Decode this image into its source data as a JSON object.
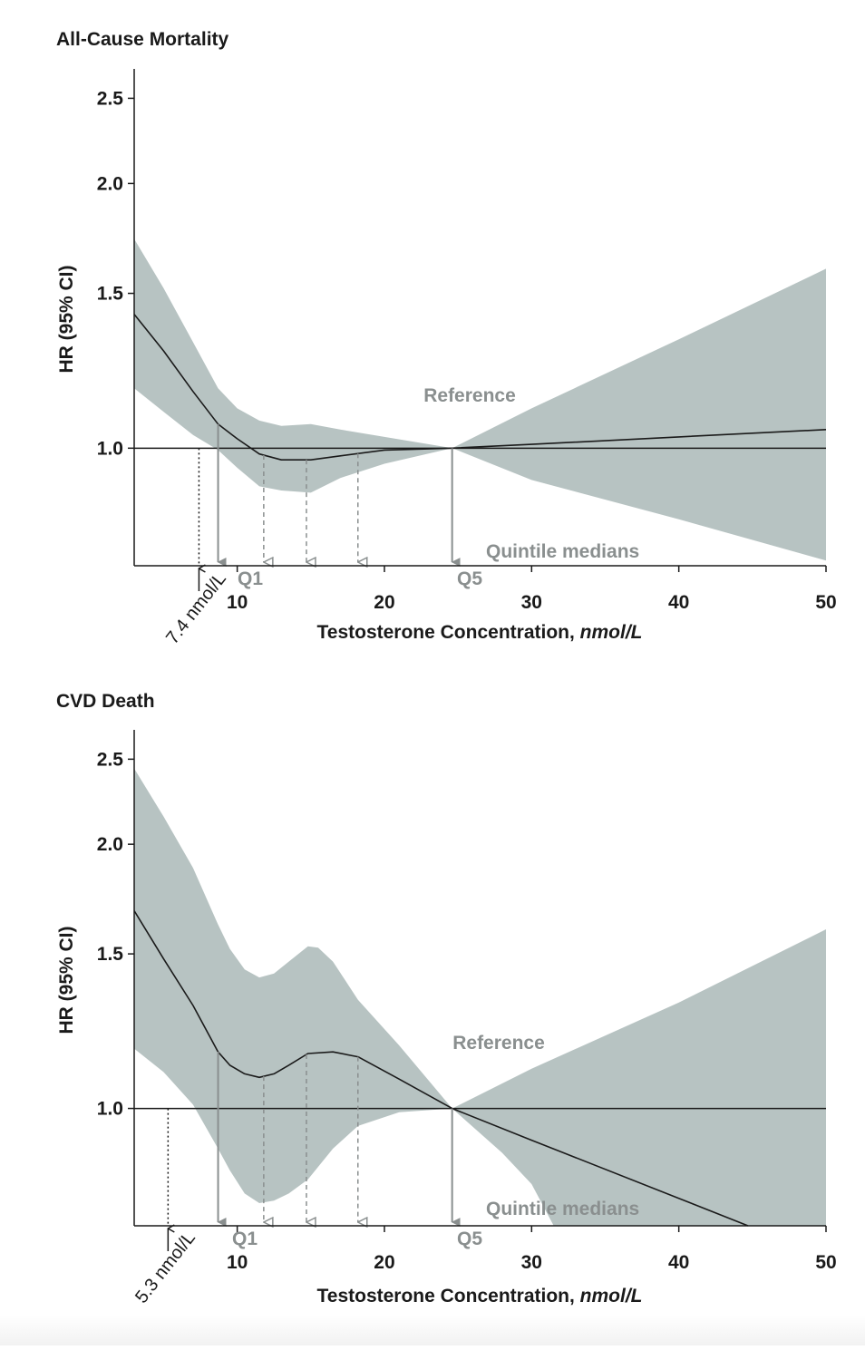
{
  "colors": {
    "ci_band": "#b7c3c2",
    "line": "#1a1a1a",
    "arrow_grey": "#8a8f8f"
  },
  "chart_data": [
    {
      "type": "line",
      "title": "All-Cause Mortality",
      "xlabel_plain": "Testosterone Concentration, ",
      "xlabel_unit": "nmol/L",
      "ylabel": "HR (95% CI)",
      "xlim": [
        3,
        50
      ],
      "ylim": [
        0.735,
        2.7
      ],
      "yscale": "log",
      "x_ticks": [
        10,
        20,
        30,
        40,
        50
      ],
      "x_tick_labels": [
        "10",
        "20",
        "30",
        "40",
        "50"
      ],
      "y_ticks": [
        1.0,
        1.5,
        2.0,
        2.5
      ],
      "y_tick_labels": [
        "1.0",
        "1.5",
        "2.0",
        "2.5"
      ],
      "reference_hr": 1.0,
      "reference_label": "Reference",
      "quintile_label": "Quintile medians",
      "quintile_medians": [
        {
          "x": 8.7,
          "label": "Q1",
          "solid": true
        },
        {
          "x": 11.8,
          "label": "",
          "solid": false
        },
        {
          "x": 14.7,
          "label": "",
          "solid": false
        },
        {
          "x": 18.2,
          "label": "",
          "solid": false
        },
        {
          "x": 24.6,
          "label": "Q5",
          "solid": true
        }
      ],
      "threshold": {
        "x": 7.4,
        "label": "7.4 nmol/L"
      },
      "series": [
        {
          "name": "HR",
          "x": [
            3,
            5,
            7,
            8.7,
            10,
            11.5,
            13,
            15,
            17,
            20,
            24.6,
            30,
            40,
            50
          ],
          "values": [
            1.42,
            1.29,
            1.16,
            1.065,
            1.025,
            0.985,
            0.97,
            0.97,
            0.98,
            0.995,
            1.0,
            1.01,
            1.03,
            1.05
          ]
        },
        {
          "name": "Upper 95% CI",
          "x": [
            3,
            5,
            7,
            8.7,
            10,
            11.5,
            13,
            15,
            17,
            20,
            24.6,
            30,
            40,
            50
          ],
          "values": [
            1.73,
            1.52,
            1.32,
            1.17,
            1.11,
            1.075,
            1.06,
            1.065,
            1.05,
            1.03,
            1.0,
            1.11,
            1.33,
            1.6
          ]
        },
        {
          "name": "Lower 95% CI",
          "x": [
            3,
            5,
            7,
            8.7,
            10,
            11.5,
            13,
            15,
            17,
            20,
            24.6,
            30,
            40,
            50
          ],
          "values": [
            1.17,
            1.1,
            1.035,
            0.995,
            0.95,
            0.905,
            0.895,
            0.89,
            0.925,
            0.96,
            1.0,
            0.92,
            0.83,
            0.745
          ]
        }
      ]
    },
    {
      "type": "line",
      "title": "CVD Death",
      "xlabel_plain": "Testosterone Concentration, ",
      "xlabel_unit": "nmol/L",
      "ylabel": "HR (95% CI)",
      "xlim": [
        3,
        50
      ],
      "ylim": [
        0.735,
        2.7
      ],
      "yscale": "log",
      "x_ticks": [
        10,
        20,
        30,
        40,
        50
      ],
      "x_tick_labels": [
        "10",
        "20",
        "30",
        "40",
        "50"
      ],
      "y_ticks": [
        1.0,
        1.5,
        2.0,
        2.5
      ],
      "y_tick_labels": [
        "1.0",
        "1.5",
        "2.0",
        "2.5"
      ],
      "reference_hr": 1.0,
      "reference_label": "Reference",
      "quintile_label": "Quintile medians",
      "quintile_medians": [
        {
          "x": 8.7,
          "label": "Q1",
          "solid": true
        },
        {
          "x": 11.8,
          "label": "",
          "solid": false
        },
        {
          "x": 14.7,
          "label": "",
          "solid": false
        },
        {
          "x": 18.2,
          "label": "",
          "solid": false
        },
        {
          "x": 24.6,
          "label": "Q5",
          "solid": true
        }
      ],
      "threshold": {
        "x": 5.3,
        "label": "5.3 nmol/L"
      },
      "series": [
        {
          "name": "HR",
          "x": [
            3,
            5,
            7,
            8.7,
            9.5,
            10.5,
            11.5,
            12.5,
            13.5,
            14.8,
            16.5,
            18.2,
            21,
            24.6,
            30,
            40,
            44.7
          ],
          "values": [
            1.68,
            1.48,
            1.31,
            1.16,
            1.12,
            1.095,
            1.085,
            1.095,
            1.12,
            1.155,
            1.16,
            1.145,
            1.08,
            1.0,
            0.92,
            0.79,
            0.735
          ]
        },
        {
          "name": "Upper 95% CI",
          "x": [
            3,
            5,
            7,
            8.7,
            9.5,
            10.5,
            11.5,
            12.5,
            13.5,
            14.8,
            15.5,
            16.5,
            18.2,
            21,
            24.6,
            30,
            40,
            50
          ],
          "values": [
            2.44,
            2.15,
            1.88,
            1.62,
            1.52,
            1.44,
            1.41,
            1.425,
            1.47,
            1.53,
            1.525,
            1.47,
            1.33,
            1.18,
            1.0,
            1.11,
            1.32,
            1.6
          ]
        },
        {
          "name": "Lower 95% CI",
          "x": [
            3,
            5,
            7,
            8.7,
            9.5,
            10.5,
            11.5,
            12.5,
            13.5,
            14.8,
            16.5,
            18.2,
            21,
            24.6,
            28,
            30,
            31.5,
            40,
            50
          ],
          "values": [
            1.17,
            1.1,
            1.01,
            0.9,
            0.85,
            0.8,
            0.78,
            0.785,
            0.8,
            0.83,
            0.9,
            0.955,
            0.99,
            1.0,
            0.89,
            0.82,
            0.735,
            0.735,
            0.735
          ]
        }
      ]
    }
  ]
}
